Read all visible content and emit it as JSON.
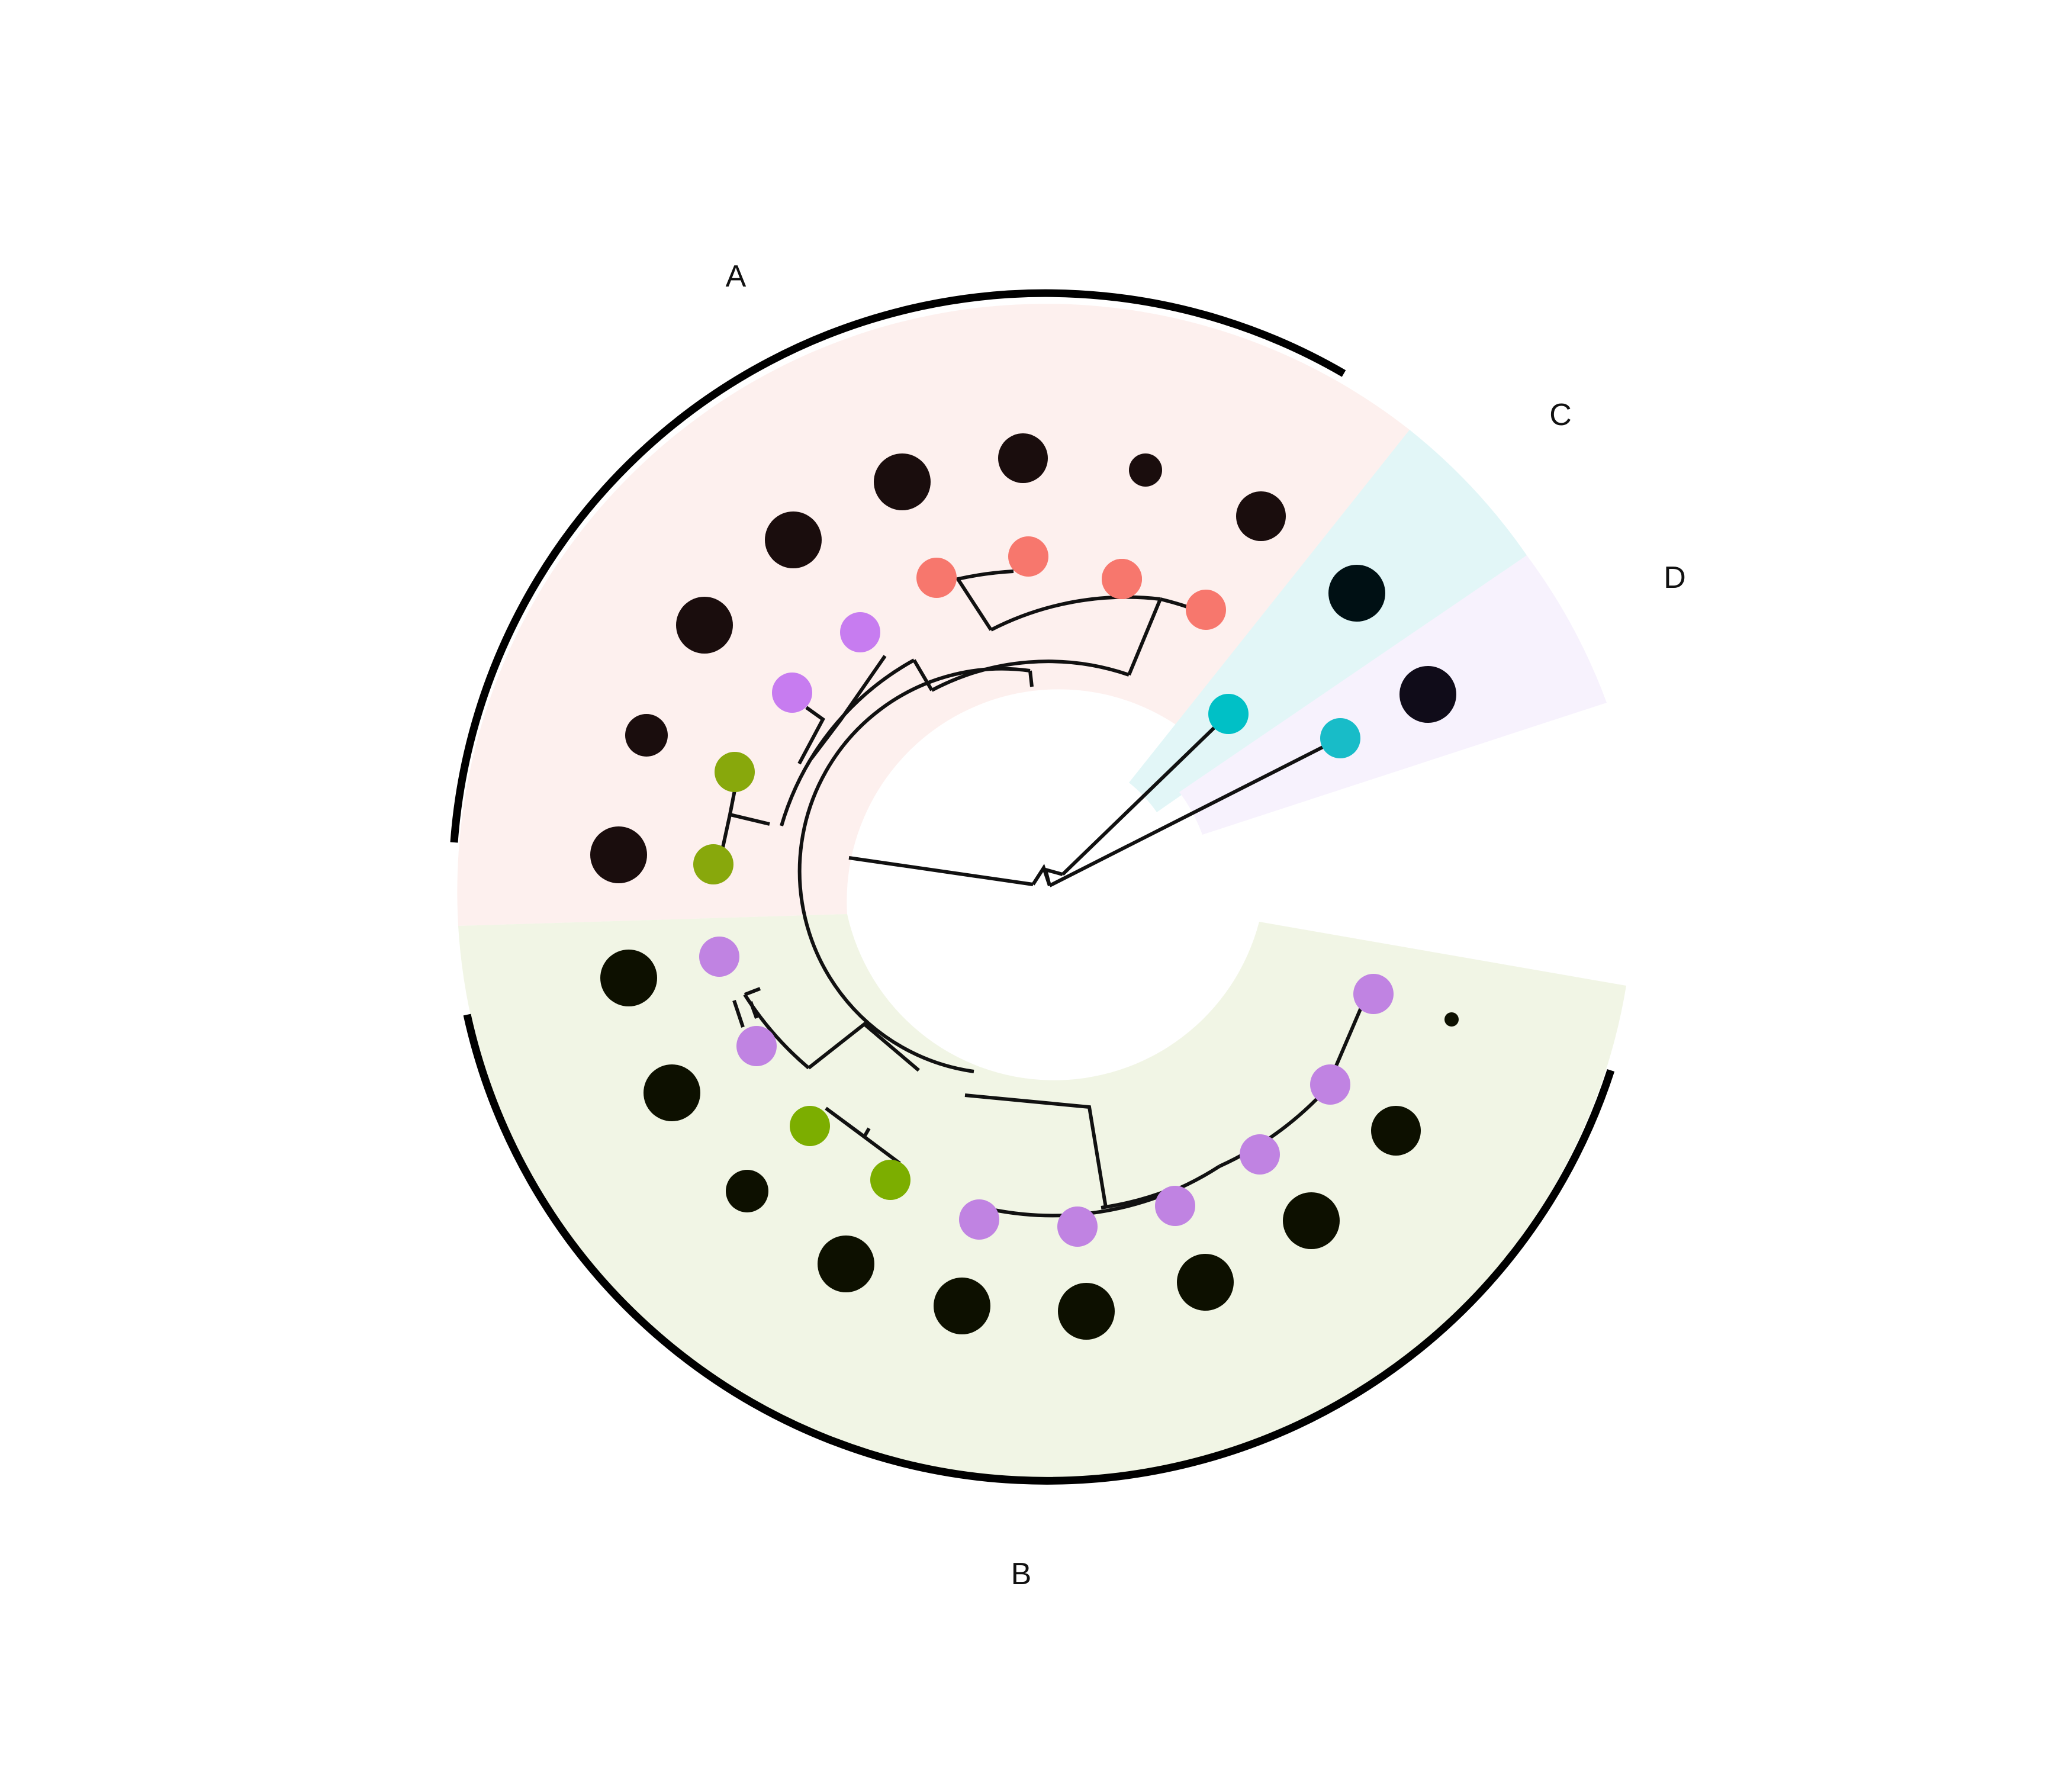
{
  "figure": {
    "type": "circular-phylogenetic-tree",
    "clades": [
      {
        "id": "A",
        "label": "A",
        "color": "#fdf0ee"
      },
      {
        "id": "B",
        "label": "B",
        "color": "#f1f5e5"
      },
      {
        "id": "C",
        "label": "C",
        "color": "#e2f6f7"
      },
      {
        "id": "D",
        "label": "D",
        "color": "#f7f2fd"
      }
    ],
    "tip_group_colors": {
      "red": "#f7776d",
      "violet": "#c77cf0",
      "olive": "#88a80c",
      "green": "#7cae00",
      "purple": "#c083e2",
      "cyan": "#00c0c6",
      "teal": "#18bcc8"
    },
    "size_point_colors": {
      "A": "#1a0d0d",
      "B": "#0d1000",
      "C": "#001014",
      "D": "#100c19"
    },
    "tips": [
      {
        "clade": "A",
        "group": "olive",
        "size_rank": 2
      },
      {
        "clade": "A",
        "group": "olive",
        "size_rank": 4
      },
      {
        "clade": "A",
        "group": "violet",
        "size_rank": 4
      },
      {
        "clade": "A",
        "group": "violet",
        "size_rank": 4
      },
      {
        "clade": "A",
        "group": "red",
        "size_rank": 4
      },
      {
        "clade": "A",
        "group": "red",
        "size_rank": 3
      },
      {
        "clade": "A",
        "group": "red",
        "size_rank": 1
      },
      {
        "clade": "A",
        "group": "red",
        "size_rank": 3
      },
      {
        "clade": "A",
        "group": "red",
        "size_rank": 2
      },
      {
        "clade": "C",
        "group": "cyan",
        "size_rank": 4
      },
      {
        "clade": "D",
        "group": "teal",
        "size_rank": 4
      },
      {
        "clade": "B",
        "group": "purple",
        "size_rank": 4
      },
      {
        "clade": "B",
        "group": "purple",
        "size_rank": 4
      },
      {
        "clade": "B",
        "group": "purple",
        "size_rank": 4
      },
      {
        "clade": "B",
        "group": "purple",
        "size_rank": 4
      },
      {
        "clade": "B",
        "group": "purple",
        "size_rank": 4
      },
      {
        "clade": "B",
        "group": "purple",
        "size_rank": 4
      },
      {
        "clade": "B",
        "group": "green",
        "size_rank": 2
      },
      {
        "clade": "B",
        "group": "green",
        "size_rank": 4
      },
      {
        "clade": "B",
        "group": "purple",
        "size_rank": 3
      },
      {
        "clade": "B",
        "group": "purple",
        "size_rank": 0
      }
    ]
  }
}
